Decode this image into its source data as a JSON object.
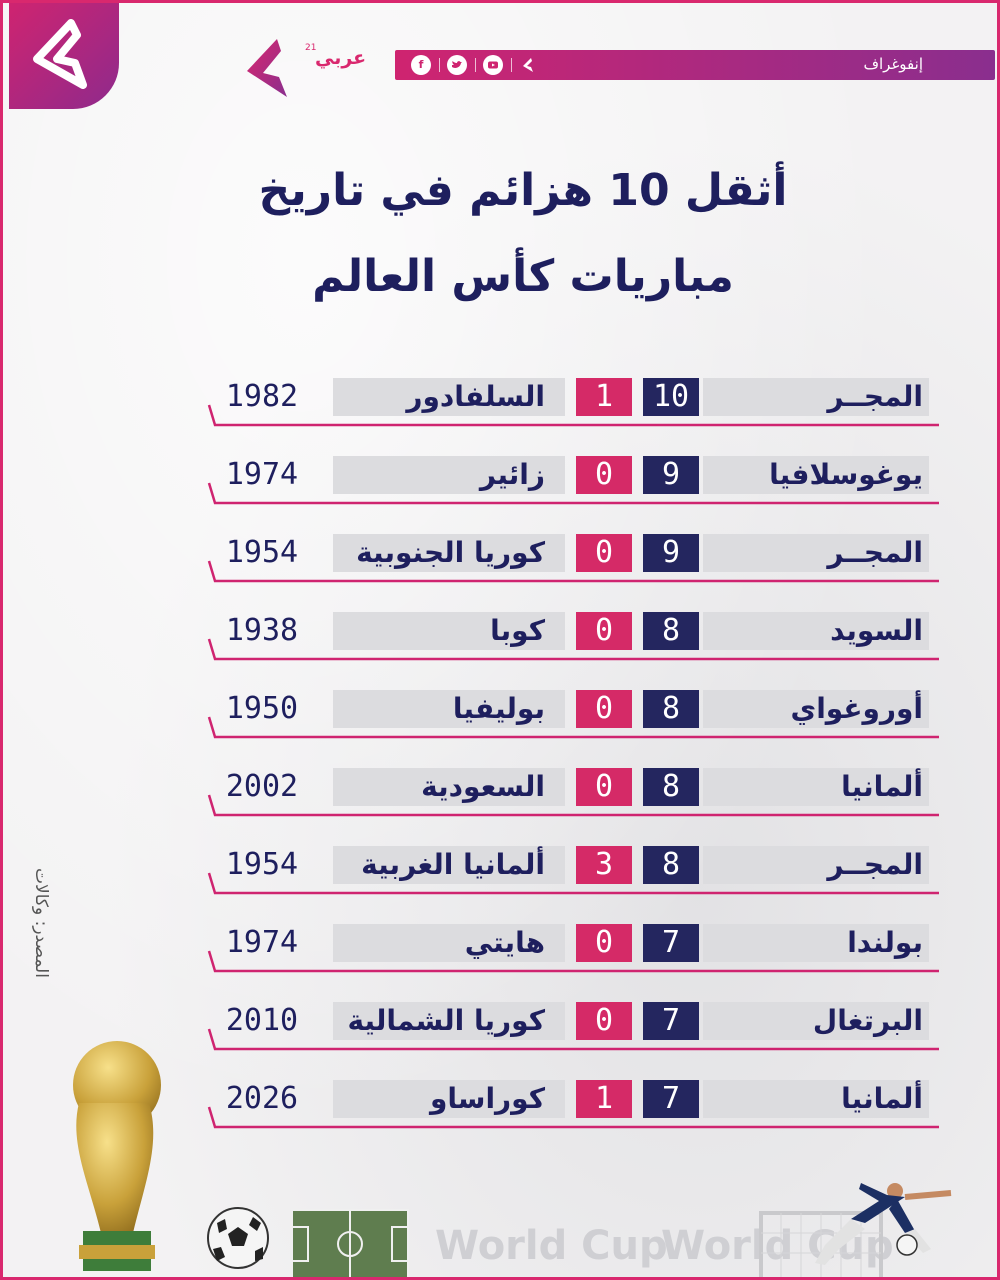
{
  "header": {
    "section_label": "إنفوغراف",
    "brand_name": "عربي",
    "brand_sup": "21"
  },
  "title": {
    "line1": "أثقل 10 هزائم في تاريخ",
    "line2": "مباريات كأس العالم"
  },
  "matches": [
    {
      "winner": "المجــر",
      "winner_score": "10",
      "loser_score": "1",
      "loser": "السلفادور",
      "year": "1982"
    },
    {
      "winner": "يوغوسلافيا",
      "winner_score": "9",
      "loser_score": "0",
      "loser": "زائير",
      "year": "1974"
    },
    {
      "winner": "المجــر",
      "winner_score": "9",
      "loser_score": "0",
      "loser": "كوريا الجنوبية",
      "year": "1954"
    },
    {
      "winner": "السويد",
      "winner_score": "8",
      "loser_score": "0",
      "loser": "كوبا",
      "year": "1938"
    },
    {
      "winner": "أوروغواي",
      "winner_score": "8",
      "loser_score": "0",
      "loser": "بوليفيا",
      "year": "1950"
    },
    {
      "winner": "ألمانيا",
      "winner_score": "8",
      "loser_score": "0",
      "loser": "السعودية",
      "year": "2002"
    },
    {
      "winner": "المجــر",
      "winner_score": "8",
      "loser_score": "3",
      "loser": "ألمانيا الغربية",
      "year": "1954"
    },
    {
      "winner": "بولندا",
      "winner_score": "7",
      "loser_score": "0",
      "loser": "هايتي",
      "year": "1974"
    },
    {
      "winner": "البرتغال",
      "winner_score": "7",
      "loser_score": "0",
      "loser": "كوريا الشمالية",
      "year": "2010"
    },
    {
      "winner": "ألمانيا",
      "winner_score": "7",
      "loser_score": "1",
      "loser": "كوراساو",
      "year": "2026"
    }
  ],
  "source": "المصدر: وكالات",
  "watermark": [
    "World Cup",
    "World Cup"
  ],
  "colors": {
    "brand_pink": "#d9286e",
    "brand_purple": "#8a2e8e",
    "navy": "#1e1f5e",
    "winner_score_bg": "#24265f",
    "loser_score_bg": "#d52a67",
    "row_bg": "#dcdcdf"
  },
  "icons": {
    "facebook": "facebook-icon",
    "twitter": "twitter-icon",
    "youtube": "youtube-icon",
    "brand": "arabi21-logo-icon"
  }
}
